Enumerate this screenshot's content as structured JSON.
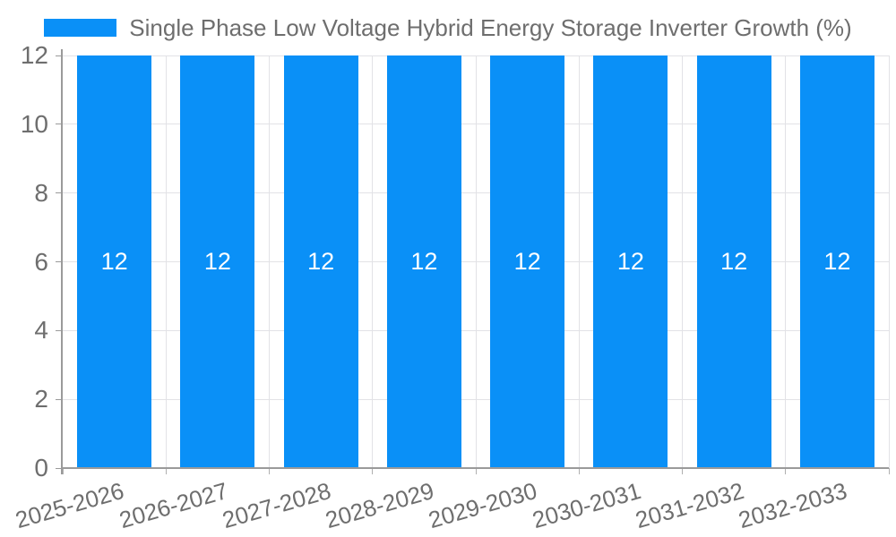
{
  "chart_data": {
    "type": "bar",
    "title": "Single Phase Low Voltage Hybrid Energy Storage Inverter Growth (%)",
    "categories": [
      "2025-2026",
      "2026-2027",
      "2027-2028",
      "2028-2029",
      "2029-2030",
      "2030-2031",
      "2031-2032",
      "2032-2033"
    ],
    "series": [
      {
        "name": "Single Phase Low Voltage Hybrid Energy Storage Inverter Growth (%)",
        "values": [
          12,
          12,
          12,
          12,
          12,
          12,
          12,
          12
        ]
      }
    ],
    "bar_value_labels": [
      "12",
      "12",
      "12",
      "12",
      "12",
      "12",
      "12",
      "12"
    ],
    "xlabel": "",
    "ylabel": "",
    "ylim": [
      0,
      12
    ],
    "yticks": [
      0,
      2,
      4,
      6,
      8,
      10,
      12
    ],
    "grid": true,
    "legend_position": "top-center",
    "value_label_position": "inside-center",
    "x_label_rotation_deg": -16
  },
  "colors": {
    "bar": "#0a90f7",
    "grid": "#e2e2e6",
    "axis": "#9a9a9a",
    "tick": "#b0b0b0",
    "tick_text": "#6e6e6e",
    "legend_text": "#6e6e6e",
    "bar_label_text": "#ffffff",
    "background": "#ffffff"
  }
}
